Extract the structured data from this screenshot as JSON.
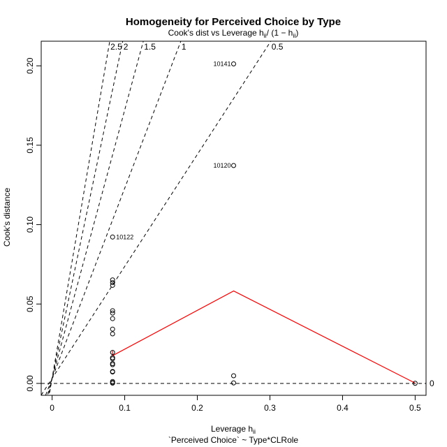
{
  "chart_data": {
    "type": "scatter",
    "title": "Homogeneity for Perceived Choice by Type",
    "subtitle": "Cook's dist vs Leverage  h",
    "subtitle_sub": "ii",
    "subtitle_tail": "/ (1 − h",
    "subtitle_sub2": "ii",
    "subtitle_end": ")",
    "xlabel": "Leverage  h",
    "xlabel_sub": "ii",
    "xlabel_second_line": "`Perceived Choice` ~ Type*CLRole",
    "ylabel": "Cook's distance",
    "xlim": [
      -0.015,
      0.515
    ],
    "ylim": [
      -0.0075,
      0.2155
    ],
    "x_ticks": [
      {
        "value": 0,
        "label": "0"
      },
      {
        "value": 0.1,
        "label": "0.1"
      },
      {
        "value": 0.2,
        "label": "0.2"
      },
      {
        "value": 0.3,
        "label": "0.3"
      },
      {
        "value": 0.4,
        "label": "0.4"
      },
      {
        "value": 0.5,
        "label": "0.5"
      }
    ],
    "y_ticks": [
      {
        "value": 0,
        "label": "0.00"
      },
      {
        "value": 0.05,
        "label": "0.05"
      },
      {
        "value": 0.1,
        "label": "0.10"
      },
      {
        "value": 0.15,
        "label": "0.15"
      },
      {
        "value": 0.2,
        "label": "0.20"
      }
    ],
    "points": [
      {
        "x": 0.0833,
        "y": 0.0002
      },
      {
        "x": 0.0833,
        "y": 0.0005
      },
      {
        "x": 0.0833,
        "y": 0.0012
      },
      {
        "x": 0.0833,
        "y": 0.0072
      },
      {
        "x": 0.0833,
        "y": 0.0075
      },
      {
        "x": 0.0833,
        "y": 0.0118
      },
      {
        "x": 0.0833,
        "y": 0.0125
      },
      {
        "x": 0.0833,
        "y": 0.0155
      },
      {
        "x": 0.0833,
        "y": 0.0162
      },
      {
        "x": 0.0833,
        "y": 0.0195
      },
      {
        "x": 0.0833,
        "y": 0.0312
      },
      {
        "x": 0.0833,
        "y": 0.0342
      },
      {
        "x": 0.0833,
        "y": 0.0408
      },
      {
        "x": 0.0833,
        "y": 0.0443
      },
      {
        "x": 0.0833,
        "y": 0.0458
      },
      {
        "x": 0.0833,
        "y": 0.0618
      },
      {
        "x": 0.0833,
        "y": 0.0635
      },
      {
        "x": 0.0833,
        "y": 0.0652
      },
      {
        "x": 0.0833,
        "y": 0.0922,
        "label": "10122"
      },
      {
        "x": 0.25,
        "y": 0.0003
      },
      {
        "x": 0.25,
        "y": 0.0048
      },
      {
        "x": 0.25,
        "y": 0.1372,
        "label": "10120"
      },
      {
        "x": 0.25,
        "y": 0.2012,
        "label": "10141"
      },
      {
        "x": 0.5,
        "y": 0.0001
      }
    ],
    "smoother": {
      "color": "#ff0000",
      "x": [
        0.0833,
        0.0833,
        0.25,
        0.5
      ],
      "y": [
        0.0205,
        0.0175,
        0.0582,
        0.0002
      ]
    },
    "contours": [
      {
        "label": "2.5",
        "slope": 2.5
      },
      {
        "label": "2",
        "slope": 2
      },
      {
        "label": "1.5",
        "slope": 1.5
      },
      {
        "label": "1",
        "slope": 1
      },
      {
        "label": "0.5",
        "slope": 0.5
      },
      {
        "label": "0",
        "slope": 0
      }
    ],
    "grid": false,
    "legend": "none"
  }
}
